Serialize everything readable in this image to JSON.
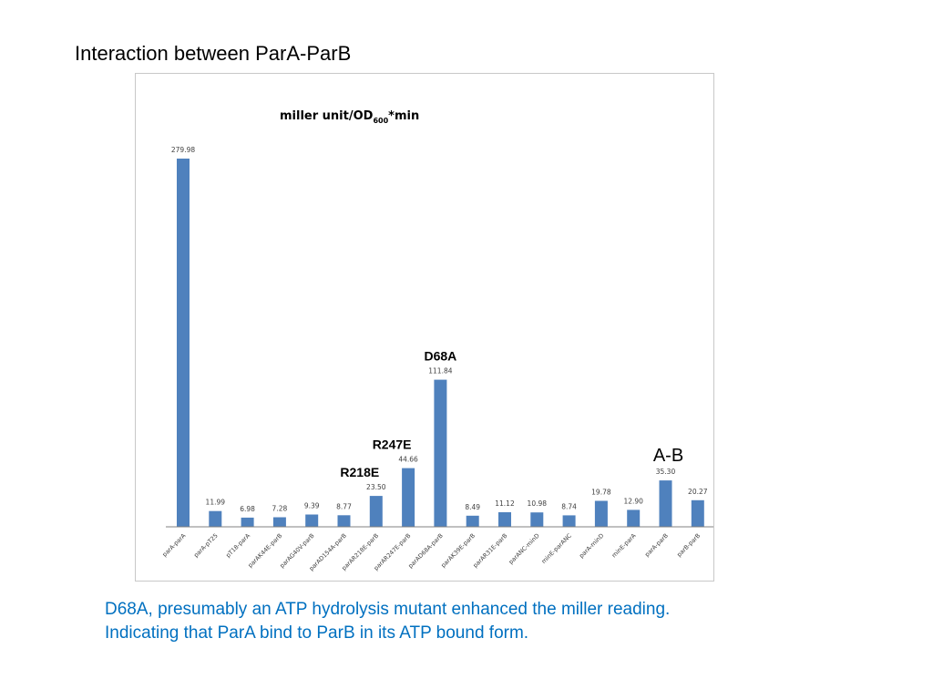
{
  "slide": {
    "title": "Interaction between ParA-ParB",
    "caption_lines": [
      "D68A, presumably an ATP hydrolysis mutant enhanced the miller reading.",
      "Indicating that ParA bind to ParB in its ATP bound form."
    ]
  },
  "colors": {
    "bar": "#4f81bd",
    "caption": "#0070c0",
    "axis": "#808080"
  },
  "chart_data": {
    "type": "bar",
    "title": "miller unit/OD",
    "title_subscript": "600",
    "title_suffix": "*min",
    "categories": [
      "parA-parA",
      "parA-pT25",
      "pT18-parA",
      "parAK44E-parB",
      "parAG40V-parB",
      "parAD154A-parB",
      "parAR218E-parB",
      "parAR247E-parB",
      "parAD68A-parB",
      "parAK39E-parB",
      "parAR31E-parB",
      "parANC-minD",
      "minE-parANC",
      "parA-minD",
      "minE-parA",
      "parA-parB",
      "parB-parB"
    ],
    "values": [
      279.98,
      11.99,
      6.98,
      7.28,
      9.39,
      8.77,
      23.5,
      44.66,
      111.84,
      8.49,
      11.12,
      10.98,
      8.74,
      19.78,
      12.9,
      35.3,
      20.27
    ],
    "value_labels": [
      "279.98",
      "11.99",
      "6.98",
      "7.28",
      "9.39",
      "8.77",
      "23.50",
      "44.66",
      "111.84",
      "8.49",
      "11.12",
      "10.98",
      "8.74",
      "19.78",
      "12.90",
      "35.30",
      "20.27"
    ],
    "ylim": [
      0,
      280
    ],
    "grid": false,
    "legend": "none",
    "annotations": [
      {
        "category_index": 6,
        "text": "R218E",
        "style": "bold"
      },
      {
        "category_index": 7,
        "text": "R247E",
        "style": "bold"
      },
      {
        "category_index": 8,
        "text": "D68A",
        "style": "bold"
      },
      {
        "category_index": 15,
        "text": "A-B",
        "style": "plain"
      }
    ]
  }
}
